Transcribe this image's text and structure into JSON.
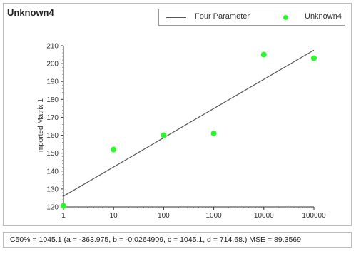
{
  "chart_data": {
    "type": "scatter",
    "title": "Unknown4",
    "ylabel": "Imported Matrix 1",
    "xlabel": "",
    "x_scale": "log",
    "xlim": [
      1,
      100000
    ],
    "ylim": [
      120,
      210
    ],
    "x_ticks": [
      1,
      10,
      100,
      1000,
      10000,
      100000
    ],
    "x_tick_labels": [
      "1",
      "10",
      "100",
      "1000",
      "10000",
      "100000"
    ],
    "y_ticks": [
      120,
      130,
      140,
      150,
      160,
      170,
      180,
      190,
      200,
      210
    ],
    "legend": {
      "placement": "top-right",
      "entries": [
        "Four Parameter",
        "Unknown4"
      ]
    },
    "series": [
      {
        "name": "Unknown4",
        "kind": "points",
        "color": "#2cf52c",
        "x": [
          1,
          10,
          100,
          1000,
          10000,
          100000
        ],
        "y": [
          120.5,
          152,
          160,
          161,
          205,
          203
        ]
      },
      {
        "name": "Four Parameter",
        "kind": "line",
        "color": "#555555",
        "x": [
          1,
          100000
        ],
        "y": [
          126,
          207.5
        ]
      }
    ],
    "grid": false
  },
  "footer_text": "IC50% = 1045.1 (a = -363.975, b = -0.0264909, c = 1045.1, d = 714.68.) MSE = 89.3569"
}
